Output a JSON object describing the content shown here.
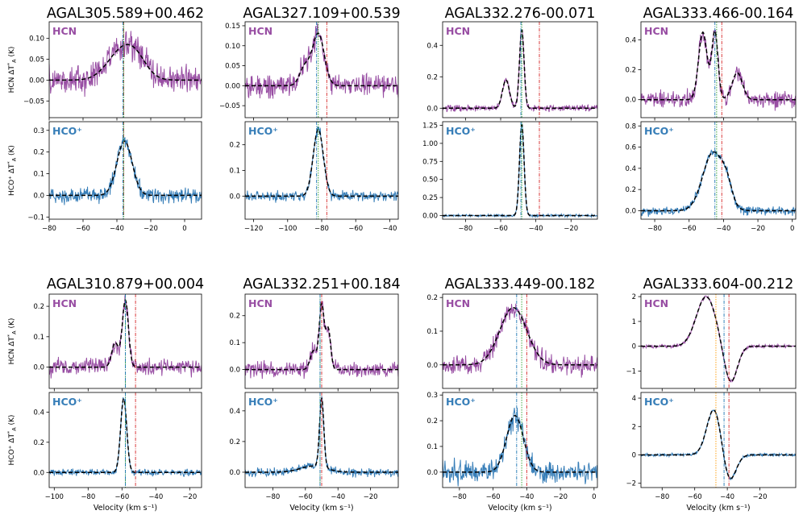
{
  "chart_data": [
    {
      "type": "line",
      "title": "AGAL305.589+00.462",
      "xlim": [
        -80,
        10
      ],
      "xticks": [
        -80,
        -60,
        -40,
        -20,
        0
      ],
      "v_red": -36,
      "v_green": -36,
      "v_blue": -36.5,
      "hcn": {
        "ylim": [
          -0.09,
          0.14
        ],
        "yticks": [
          -0.05,
          0.0,
          0.05,
          0.1
        ],
        "ylabels": [
          "−0.05",
          "0.00",
          "0.05",
          "0.10"
        ],
        "comps": [
          [
            0.075,
            -36,
            9
          ],
          [
            0.02,
            -28,
            6
          ]
        ],
        "noise": 0.025
      },
      "hco": {
        "ylim": [
          -0.11,
          0.34
        ],
        "yticks": [
          -0.1,
          0.0,
          0.1,
          0.2,
          0.3
        ],
        "ylabels": [
          "−0.1",
          "0.0",
          "0.1",
          "0.2",
          "0.3"
        ],
        "comps": [
          [
            0.25,
            -35.5,
            4.5
          ]
        ],
        "noise": 0.025
      }
    },
    {
      "type": "line",
      "title": "AGAL327.109+00.539",
      "xlim": [
        -125,
        -35
      ],
      "xticks": [
        -120,
        -100,
        -80,
        -60,
        -40
      ],
      "v_red": -77,
      "v_green": -82,
      "v_blue": -83,
      "hcn": {
        "ylim": [
          -0.08,
          0.16
        ],
        "yticks": [
          -0.05,
          0.0,
          0.05,
          0.1,
          0.15
        ],
        "ylabels": [
          "−0.05",
          "0.00",
          "0.05",
          "0.10",
          "0.15"
        ],
        "comps": [
          [
            0.13,
            -82,
            3.5
          ],
          [
            0.045,
            -90,
            3
          ]
        ],
        "noise": 0.02
      },
      "hco": {
        "ylim": [
          -0.09,
          0.29
        ],
        "yticks": [
          0.0,
          0.1,
          0.2
        ],
        "ylabels": [
          "0.0",
          "0.1",
          "0.2"
        ],
        "comps": [
          [
            0.26,
            -82,
            3
          ]
        ],
        "noise": 0.015
      }
    },
    {
      "type": "line",
      "title": "AGAL332.276-00.071",
      "xlim": [
        -93,
        -5
      ],
      "xticks": [
        -80,
        -60,
        -40,
        -20
      ],
      "v_red": -38,
      "v_green": -48,
      "v_blue": -48.5,
      "hcn": {
        "ylim": [
          -0.06,
          0.55
        ],
        "yticks": [
          0.0,
          0.2,
          0.4
        ],
        "ylabels": [
          "0.0",
          "0.2",
          "0.4"
        ],
        "comps": [
          [
            0.5,
            -48,
            1.3
          ],
          [
            0.18,
            -57,
            2
          ]
        ],
        "noise": 0.015
      },
      "hco": {
        "ylim": [
          -0.05,
          1.3
        ],
        "yticks": [
          0.0,
          0.25,
          0.5,
          0.75,
          1.0,
          1.25
        ],
        "ylabels": [
          "0.00",
          "0.25",
          "0.50",
          "0.75",
          "1.00",
          "1.25"
        ],
        "comps": [
          [
            1.27,
            -48,
            1.3
          ]
        ],
        "noise": 0.012
      }
    },
    {
      "type": "line",
      "title": "AGAL333.466-00.164",
      "xlim": [
        -88,
        2
      ],
      "xticks": [
        -80,
        -60,
        -40,
        -20,
        0
      ],
      "v_red": -41,
      "v_green": -44,
      "v_blue": -45,
      "hcn": {
        "ylim": [
          -0.12,
          0.52
        ],
        "yticks": [
          0.0,
          0.2,
          0.4
        ],
        "ylabels": [
          "0.0",
          "0.2",
          "0.4"
        ],
        "comps": [
          [
            0.45,
            -52,
            2.5
          ],
          [
            0.45,
            -45,
            1.8
          ],
          [
            0.18,
            -32,
            3
          ]
        ],
        "noise": 0.04
      },
      "hco": {
        "ylim": [
          -0.08,
          0.84
        ],
        "yticks": [
          0.0,
          0.2,
          0.4,
          0.6,
          0.8
        ],
        "ylabels": [
          "0.0",
          "0.2",
          "0.4",
          "0.6",
          "0.8"
        ],
        "comps": [
          [
            0.55,
            -46,
            6
          ],
          [
            0.15,
            -38,
            3
          ]
        ],
        "noise": 0.03
      }
    },
    {
      "type": "line",
      "title": "AGAL310.879+00.004",
      "xlim": [
        -103,
        -13
      ],
      "xticks": [
        -100,
        -80,
        -60,
        -40,
        -20
      ],
      "v_red": -52,
      "v_green": -58,
      "v_blue": -58,
      "hcn": {
        "ylim": [
          -0.07,
          0.24
        ],
        "yticks": [
          0.0,
          0.1,
          0.2
        ],
        "ylabels": [
          "0.0",
          "0.1",
          "0.2"
        ],
        "comps": [
          [
            0.22,
            -58,
            1.8
          ],
          [
            0.08,
            -64,
            2
          ]
        ],
        "noise": 0.02
      },
      "hco": {
        "ylim": [
          -0.1,
          0.53
        ],
        "yticks": [
          0.0,
          0.2,
          0.4
        ],
        "ylabels": [
          "0.0",
          "0.2",
          "0.4"
        ],
        "comps": [
          [
            0.49,
            -59,
            1.8
          ]
        ],
        "noise": 0.015
      }
    },
    {
      "type": "line",
      "title": "AGAL332.251+00.184",
      "xlim": [
        -97,
        -3
      ],
      "xticks": [
        -80,
        -60,
        -40,
        -20
      ],
      "v_red": -50,
      "v_green": -51,
      "v_blue": -51,
      "hcn": {
        "ylim": [
          -0.07,
          0.28
        ],
        "yticks": [
          0.0,
          0.1,
          0.2
        ],
        "ylabels": [
          "0.0",
          "0.1",
          "0.2"
        ],
        "comps": [
          [
            0.24,
            -50,
            1.5
          ],
          [
            0.15,
            -46,
            1.5
          ],
          [
            0.07,
            -55,
            2
          ]
        ],
        "noise": 0.02
      },
      "hco": {
        "ylim": [
          -0.1,
          0.52
        ],
        "yticks": [
          0.0,
          0.2,
          0.4
        ],
        "ylabels": [
          "0.0",
          "0.2",
          "0.4"
        ],
        "comps": [
          [
            0.45,
            -50,
            1.3
          ],
          [
            0.04,
            -55,
            8
          ]
        ],
        "noise": 0.02
      }
    },
    {
      "type": "line",
      "title": "AGAL333.449-00.182",
      "xlim": [
        -90,
        2
      ],
      "xticks": [
        -80,
        -60,
        -40,
        -20,
        0
      ],
      "v_red": -40,
      "v_green": -43,
      "v_blue": -46,
      "hcn": {
        "ylim": [
          -0.07,
          0.21
        ],
        "yticks": [
          0.0,
          0.1,
          0.2
        ],
        "ylabels": [
          "0.0",
          "0.1",
          "0.2"
        ],
        "comps": [
          [
            0.17,
            -48,
            8
          ]
        ],
        "noise": 0.02
      },
      "hco": {
        "ylim": [
          -0.06,
          0.31
        ],
        "yticks": [
          0.0,
          0.1,
          0.2,
          0.3
        ],
        "ylabels": [
          "0.0",
          "0.1",
          "0.2",
          "0.3"
        ],
        "comps": [
          [
            0.22,
            -47,
            5
          ]
        ],
        "noise": 0.03
      }
    },
    {
      "type": "line",
      "title": "AGAL333.604-00.212",
      "xlim": [
        -93,
        2
      ],
      "xticks": [
        -80,
        -60,
        -40,
        -20
      ],
      "v_red": -39,
      "v_orange": -47,
      "v_blue": -42,
      "hcn": {
        "ylim": [
          -1.7,
          2.1
        ],
        "yticks": [
          -1,
          0,
          1,
          2
        ],
        "ylabels": [
          "−1",
          "0",
          "1",
          "2"
        ],
        "comps": [
          [
            2.0,
            -53,
            6
          ],
          [
            -1.5,
            -38,
            4
          ]
        ],
        "noise": 0.05
      },
      "hco": {
        "ylim": [
          -2.3,
          4.4
        ],
        "yticks": [
          -2,
          0,
          2,
          4
        ],
        "ylabels": [
          "−2",
          "0",
          "2",
          "4"
        ],
        "comps": [
          [
            3.3,
            -48,
            4.5
          ],
          [
            -2.0,
            -39,
            4
          ]
        ],
        "noise": 0.08
      }
    }
  ],
  "labels": {
    "hcn_tag": "HCN",
    "hco_tag": "HCO⁺",
    "hcn_ylabel": "HCN  ΔT*A (K)",
    "hco_ylabel": "HCO⁺  ΔT*A (K)",
    "xlabel": "Velocity (km s⁻¹)"
  },
  "colors": {
    "hcn": "#984ea3",
    "hco": "#377eb8",
    "fit": "#000000",
    "red": "#d62728",
    "green": "#2ca02c",
    "blue": "#1f77b4",
    "orange": "#ff9900"
  }
}
